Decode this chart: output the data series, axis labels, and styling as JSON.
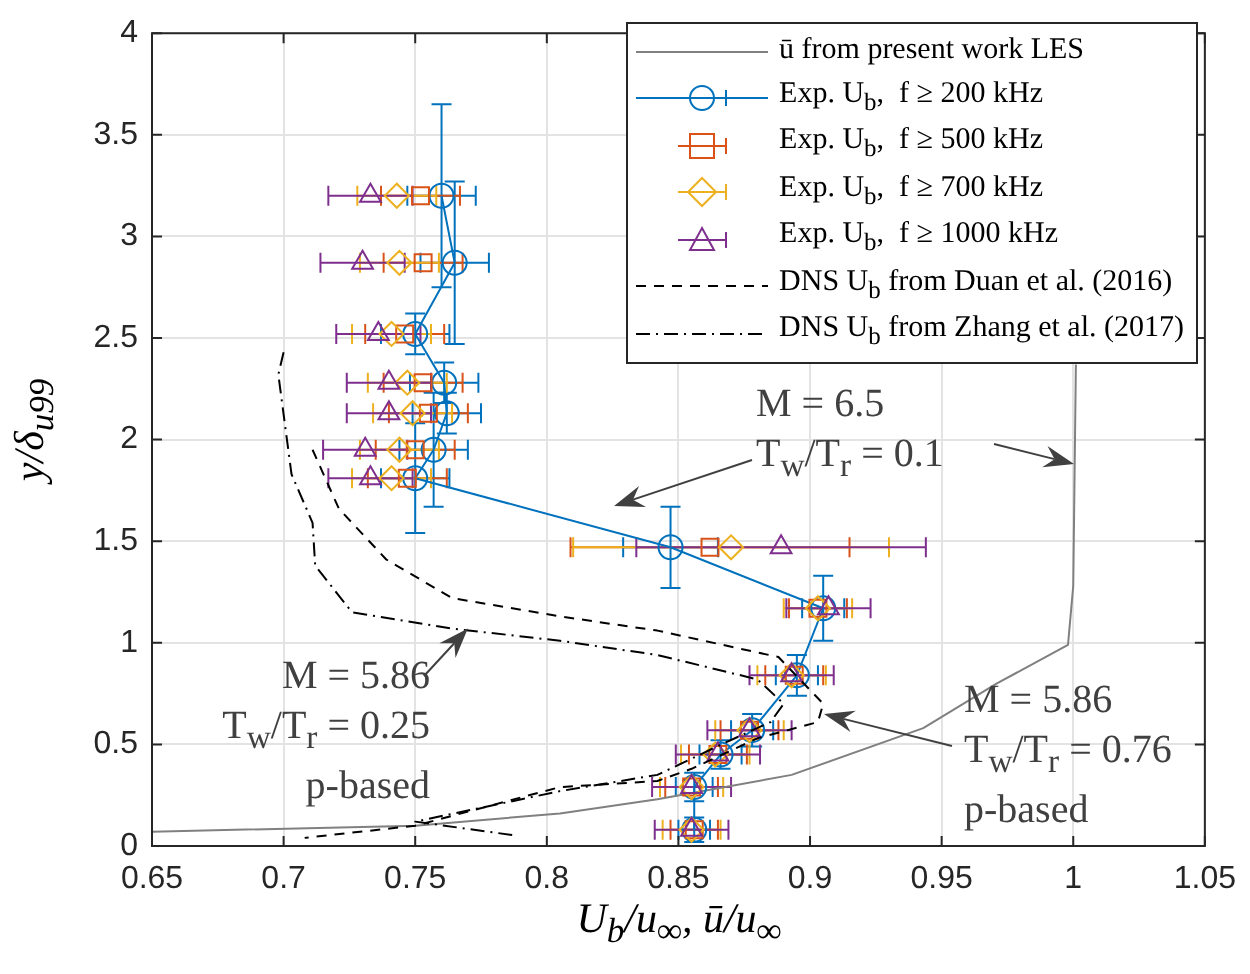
{
  "chart_data": {
    "type": "line",
    "xlabel": "U$_{b}$/u$_{∞}$, ū/u$_{∞}$",
    "ylabel": "y/δ$_{u99}$",
    "xlim": [
      0.65,
      1.05
    ],
    "xticks": [
      0.65,
      0.7,
      0.75,
      0.8,
      0.85,
      0.9,
      0.95,
      1,
      1.05
    ],
    "ylim": [
      0,
      4
    ],
    "yticks": [
      0,
      0.5,
      1,
      1.5,
      2,
      2.5,
      3,
      3.5,
      4
    ],
    "grid": true,
    "legend": "top right",
    "series": [
      {
        "name": "ū from present work LES",
        "type": "line",
        "color": "#808080",
        "marker": "none",
        "line_style": "solid",
        "x": [
          0.65,
          0.75,
          0.805,
          0.842,
          0.893,
          0.943,
          0.971,
          0.998,
          1.0,
          1.001
        ],
        "values": [
          0.07,
          0.1,
          0.16,
          0.23,
          0.35,
          0.58,
          0.8,
          0.99,
          1.28,
          2.37
        ]
      },
      {
        "name": "Exp. U$_{b}$,  f ≥ 200 kHz",
        "type": "line",
        "color": "#0072bd",
        "marker": "circle",
        "line_style": "solid",
        "x": [
          0.76,
          0.765,
          0.75,
          0.761,
          0.762,
          0.757,
          0.75,
          0.847,
          0.905,
          0.895,
          0.878,
          0.866,
          0.856,
          0.856
        ],
        "values": [
          3.2,
          2.87,
          2.52,
          2.28,
          2.13,
          1.95,
          1.81,
          1.47,
          1.17,
          0.84,
          0.57,
          0.45,
          0.29,
          0.08
        ],
        "errors": [
          0.45,
          0.4,
          0.1,
          0.1,
          0.1,
          0.28,
          0.27,
          0.2,
          0.16,
          0.1,
          0.08,
          0.07,
          0.07,
          0.06
        ],
        "xerrors": [
          0.013,
          0.013,
          0.013,
          0.013,
          0.013,
          0.013,
          0.013,
          0.018,
          0.008,
          0.008,
          0.008,
          0.008,
          0.007,
          0.006
        ]
      },
      {
        "name": "Exp. U$_{b}$,  f ≥ 500 kHz",
        "type": "scatter",
        "color": "#d95319",
        "marker": "square",
        "x": [
          0.752,
          0.753,
          0.746,
          0.753,
          0.755,
          0.75,
          0.747,
          0.862,
          0.903,
          0.894,
          0.877,
          0.865,
          0.855,
          0.856
        ],
        "values": [
          3.2,
          2.87,
          2.52,
          2.28,
          2.13,
          1.95,
          1.81,
          1.47,
          1.17,
          0.84,
          0.57,
          0.45,
          0.29,
          0.08
        ],
        "xerrors": [
          0.015,
          0.015,
          0.015,
          0.015,
          0.015,
          0.015,
          0.015,
          0.053,
          0.011,
          0.011,
          0.011,
          0.011,
          0.01,
          0.009
        ]
      },
      {
        "name": "Exp. U$_{b}$,  f ≥ 700 kHz",
        "type": "scatter",
        "color": "#edb120",
        "marker": "diamond",
        "x": [
          0.743,
          0.744,
          0.741,
          0.747,
          0.749,
          0.744,
          0.741,
          0.87,
          0.903,
          0.893,
          0.877,
          0.864,
          0.855,
          0.855
        ],
        "values": [
          3.2,
          2.87,
          2.52,
          2.28,
          2.13,
          1.95,
          1.81,
          1.47,
          1.17,
          0.84,
          0.57,
          0.45,
          0.29,
          0.08
        ],
        "xerrors": [
          0.015,
          0.015,
          0.015,
          0.015,
          0.015,
          0.015,
          0.015,
          0.06,
          0.013,
          0.013,
          0.013,
          0.013,
          0.012,
          0.011
        ]
      },
      {
        "name": "Exp. U$_{b}$,  f ≥ 1000 kHz",
        "type": "scatter",
        "color": "#7e2f8e",
        "marker": "triangle",
        "x": [
          0.733,
          0.73,
          0.736,
          0.74,
          0.74,
          0.731,
          0.733,
          0.889,
          0.907,
          0.893,
          0.877,
          0.865,
          0.855,
          0.855
        ],
        "values": [
          3.2,
          2.87,
          2.52,
          2.28,
          2.13,
          1.95,
          1.81,
          1.47,
          1.17,
          0.84,
          0.57,
          0.45,
          0.29,
          0.08
        ],
        "xerrors": [
          0.016,
          0.016,
          0.016,
          0.016,
          0.016,
          0.016,
          0.016,
          0.055,
          0.016,
          0.016,
          0.016,
          0.016,
          0.015,
          0.014
        ]
      },
      {
        "name": "DNS U$_{b}$ from Duan et al. (2016)",
        "type": "line",
        "color": "#000000",
        "marker": "none",
        "line_style": "dashed",
        "x": [
          0.711,
          0.721,
          0.739,
          0.764,
          0.805,
          0.842,
          0.888,
          0.905,
          0.903,
          0.88,
          0.855,
          0.842,
          0.805,
          0.75,
          0.708
        ],
        "values": [
          1.95,
          1.66,
          1.41,
          1.22,
          1.13,
          1.06,
          0.93,
          0.7,
          0.61,
          0.53,
          0.38,
          0.32,
          0.29,
          0.1,
          0.04
        ]
      },
      {
        "name": "DNS U$_{b}$ from Zhang et al. (2017)",
        "type": "line",
        "color": "#000000",
        "marker": "none",
        "line_style": "dashdot",
        "x": [
          0.7,
          0.698,
          0.703,
          0.711,
          0.712,
          0.726,
          0.764,
          0.805,
          0.842,
          0.88,
          0.89,
          0.885,
          0.868,
          0.842,
          0.805,
          0.75,
          0.789
        ],
        "values": [
          2.43,
          2.32,
          1.83,
          1.59,
          1.38,
          1.15,
          1.07,
          1.01,
          0.94,
          0.82,
          0.7,
          0.61,
          0.51,
          0.35,
          0.27,
          0.12,
          0.05
        ]
      }
    ],
    "annotations": [
      {
        "text": "M = 6.5\nT$_{w}$/T$_{r}$ = 0.1"
      },
      {
        "text": "M = 5.86\nT$_{w}$/T$_{r}$ = 0.25\np-based",
        "x": 0.77,
        "y": 1.07
      },
      {
        "text": "M = 5.86\nT$_{w}$/T$_{r}$ = 0.76\np-based"
      }
    ]
  }
}
